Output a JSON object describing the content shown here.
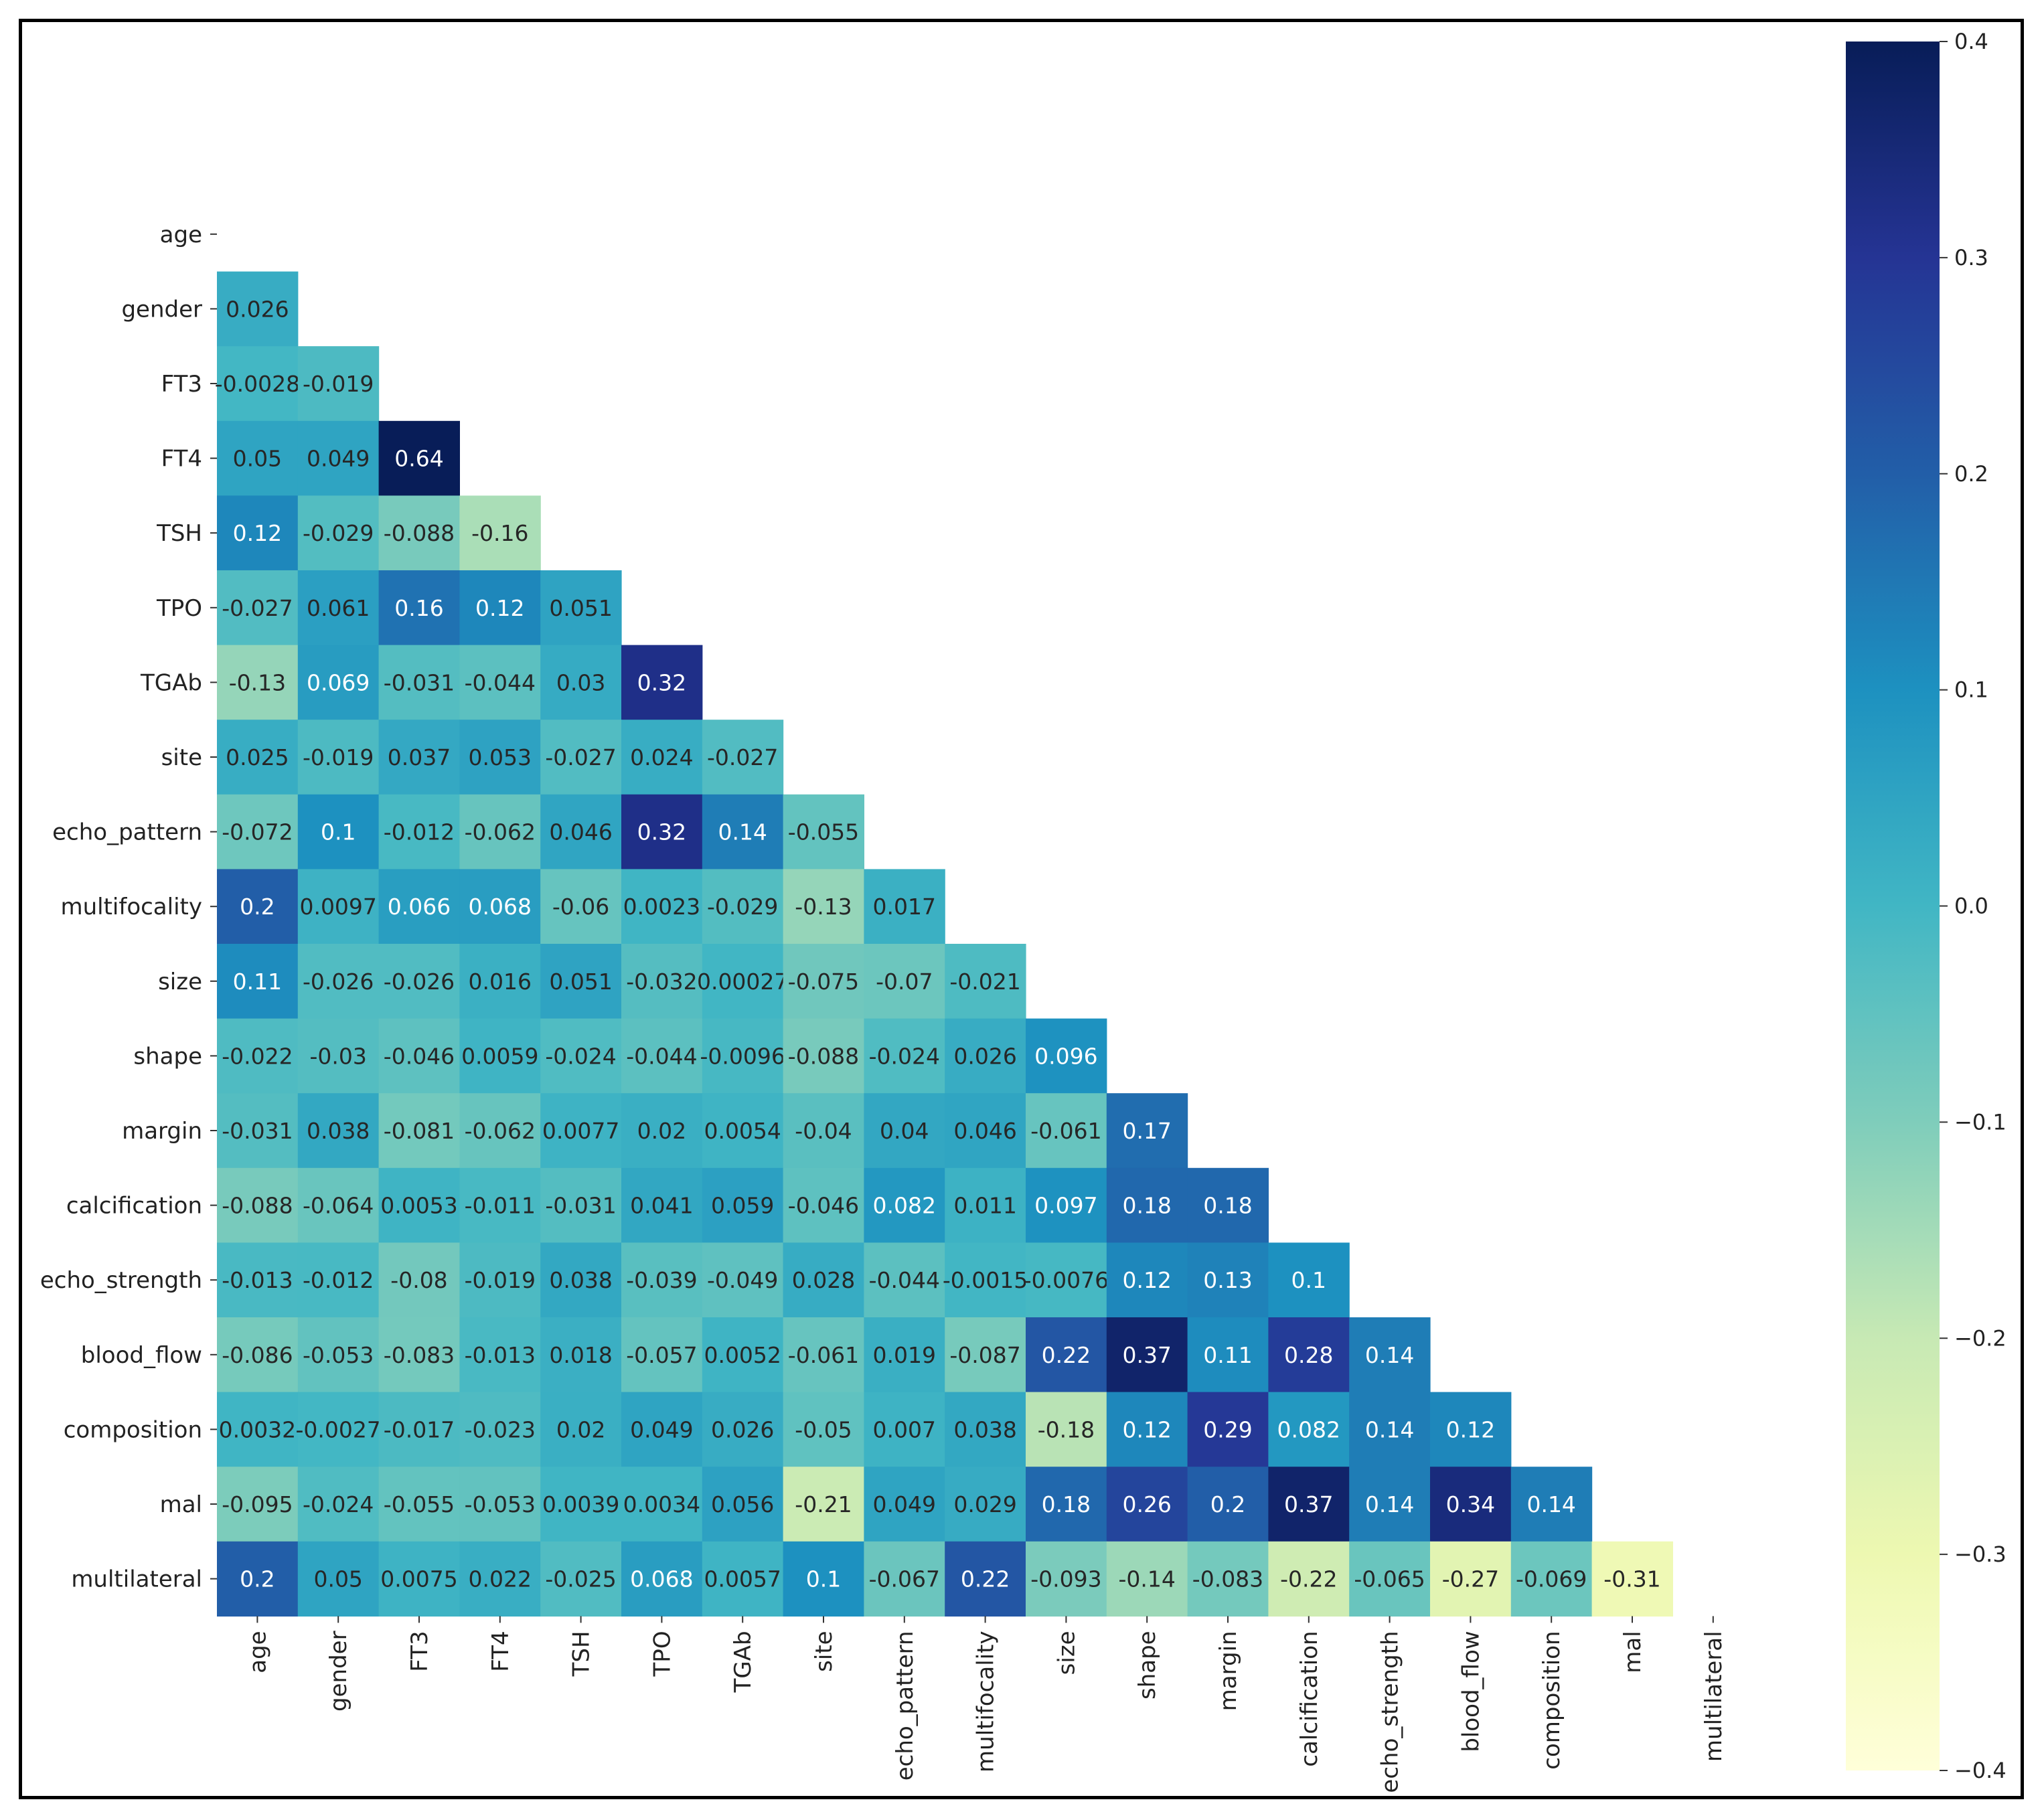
{
  "chart_data": {
    "type": "heatmap",
    "title": "",
    "xlabel": "",
    "ylabel": "",
    "mask": "upper triangle including diagonal",
    "labels": [
      "age",
      "gender",
      "FT3",
      "FT4",
      "TSH",
      "TPO",
      "TGAb",
      "site",
      "echo_pattern",
      "multifocality",
      "size",
      "shape",
      "margin",
      "calcification",
      "echo_strength",
      "blood_flow",
      "composition",
      "mal",
      "multilateral"
    ],
    "values": [
      [],
      [
        "0.026"
      ],
      [
        "-0.0028",
        "-0.019"
      ],
      [
        "0.05",
        "0.049",
        "0.64"
      ],
      [
        "0.12",
        "-0.029",
        "-0.088",
        "-0.16"
      ],
      [
        "-0.027",
        "0.061",
        "0.16",
        "0.12",
        "0.051"
      ],
      [
        "-0.13",
        "0.069",
        "-0.031",
        "-0.044",
        "0.03",
        "0.32"
      ],
      [
        "0.025",
        "-0.019",
        "0.037",
        "0.053",
        "-0.027",
        "0.024",
        "-0.027"
      ],
      [
        "-0.072",
        "0.1",
        "-0.012",
        "-0.062",
        "0.046",
        "0.32",
        "0.14",
        "-0.055"
      ],
      [
        "0.2",
        "0.0097",
        "0.066",
        "0.068",
        "-0.06",
        "0.0023",
        "-0.029",
        "-0.13",
        "0.017"
      ],
      [
        "0.11",
        "-0.026",
        "-0.026",
        "0.016",
        "0.051",
        "-0.032",
        "0.00027",
        "-0.075",
        "-0.07",
        "-0.021"
      ],
      [
        "-0.022",
        "-0.03",
        "-0.046",
        "0.0059",
        "-0.024",
        "-0.044",
        "-0.0096",
        "-0.088",
        "-0.024",
        "0.026",
        "0.096"
      ],
      [
        "-0.031",
        "0.038",
        "-0.081",
        "-0.062",
        "0.0077",
        "0.02",
        "0.0054",
        "-0.04",
        "0.04",
        "0.046",
        "-0.061",
        "0.17"
      ],
      [
        "-0.088",
        "-0.064",
        "0.0053",
        "-0.011",
        "-0.031",
        "0.041",
        "0.059",
        "-0.046",
        "0.082",
        "0.011",
        "0.097",
        "0.18",
        "0.18"
      ],
      [
        "-0.013",
        "-0.012",
        "-0.08",
        "-0.019",
        "0.038",
        "-0.039",
        "-0.049",
        "0.028",
        "-0.044",
        "-0.0015",
        "-0.0076",
        "0.12",
        "0.13",
        "0.1"
      ],
      [
        "-0.086",
        "-0.053",
        "-0.083",
        "-0.013",
        "0.018",
        "-0.057",
        "0.0052",
        "-0.061",
        "0.019",
        "-0.087",
        "0.22",
        "0.37",
        "0.11",
        "0.28",
        "0.14"
      ],
      [
        "0.0032",
        "-0.0027",
        "-0.017",
        "-0.023",
        "0.02",
        "0.049",
        "0.026",
        "-0.05",
        "0.007",
        "0.038",
        "-0.18",
        "0.12",
        "0.29",
        "0.082",
        "0.14",
        "0.12"
      ],
      [
        "-0.095",
        "-0.024",
        "-0.055",
        "-0.053",
        "0.0039",
        "0.0034",
        "0.056",
        "-0.21",
        "0.049",
        "0.029",
        "0.18",
        "0.26",
        "0.2",
        "0.37",
        "0.14",
        "0.34",
        "0.14"
      ],
      [
        "0.2",
        "0.05",
        "0.0075",
        "0.022",
        "-0.025",
        "0.068",
        "0.0057",
        "0.1",
        "-0.067",
        "0.22",
        "-0.093",
        "-0.14",
        "-0.083",
        "-0.22",
        "-0.065",
        "-0.27",
        "-0.069",
        "-0.31"
      ]
    ],
    "colormap": "YlGnBu",
    "vmin": -0.4,
    "vmax": 0.4,
    "colorbar_ticks": [
      {
        "value": 0.4,
        "label": "0.4"
      },
      {
        "value": 0.3,
        "label": "0.3"
      },
      {
        "value": 0.2,
        "label": "0.2"
      },
      {
        "value": 0.1,
        "label": "0.1"
      },
      {
        "value": 0.0,
        "label": "0.0"
      },
      {
        "value": -0.1,
        "label": "−0.1"
      },
      {
        "value": -0.2,
        "label": "−0.2"
      },
      {
        "value": -0.3,
        "label": "−0.3"
      },
      {
        "value": -0.4,
        "label": "−0.4"
      }
    ]
  }
}
